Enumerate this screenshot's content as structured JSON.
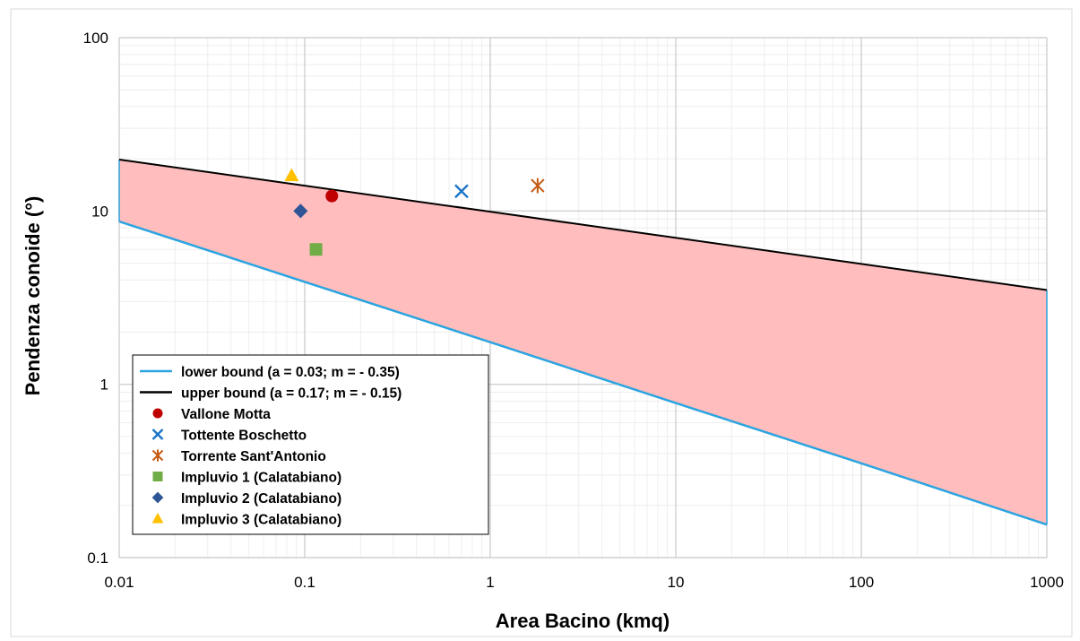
{
  "chart_data": {
    "type": "scatter",
    "title": "",
    "xlabel": "Area Bacino  (kmq)",
    "ylabel": "Pendenza conoide  (°)",
    "x_scale": "log",
    "y_scale": "log",
    "xlim": [
      0.01,
      1000
    ],
    "ylim": [
      0.1,
      100
    ],
    "x_ticks": [
      "0.01",
      "0.1",
      "1",
      "10",
      "100",
      "1000"
    ],
    "y_ticks": [
      "0.1",
      "1",
      "10",
      "100"
    ],
    "grid": true,
    "legend_position": "bottom-left",
    "band_fill": "#ffbdbd",
    "series": [
      {
        "name": "lower bound (a = 0.03; m = - 0.35)",
        "kind": "line",
        "color": "#2ba4e0",
        "x": [
          0.01,
          0.1,
          1,
          10,
          100,
          1000
        ],
        "y": [
          8.7,
          3.9,
          1.75,
          0.78,
          0.35,
          0.155
        ]
      },
      {
        "name": "upper bound (a = 0.17; m = - 0.15)",
        "kind": "line",
        "color": "#000000",
        "x": [
          0.01,
          0.1,
          1,
          10,
          100,
          1000
        ],
        "y": [
          19.8,
          14.0,
          9.9,
          7.0,
          4.95,
          3.5
        ]
      },
      {
        "name": "Vallone Motta",
        "kind": "marker",
        "marker": "circle",
        "color": "#c00000",
        "x": [
          0.14
        ],
        "y": [
          12.2
        ]
      },
      {
        "name": "Tottente Boschetto",
        "kind": "marker",
        "marker": "x",
        "color": "#1a74c7",
        "x": [
          0.7
        ],
        "y": [
          13.0
        ]
      },
      {
        "name": "Torrente Sant'Antonio",
        "kind": "marker",
        "marker": "star",
        "color": "#c55a11",
        "x": [
          1.8
        ],
        "y": [
          14.0
        ]
      },
      {
        "name": "Impluvio 1 (Calatabiano)",
        "kind": "marker",
        "marker": "square",
        "color": "#70ad47",
        "x": [
          0.115
        ],
        "y": [
          6.0
        ]
      },
      {
        "name": "Impluvio 2 (Calatabiano)",
        "kind": "marker",
        "marker": "diamond",
        "color": "#2f5597",
        "x": [
          0.095
        ],
        "y": [
          10.0
        ]
      },
      {
        "name": "Impluvio 3 (Calatabiano)",
        "kind": "marker",
        "marker": "triangle",
        "color": "#ffc000",
        "x": [
          0.085
        ],
        "y": [
          16.0
        ]
      }
    ]
  }
}
